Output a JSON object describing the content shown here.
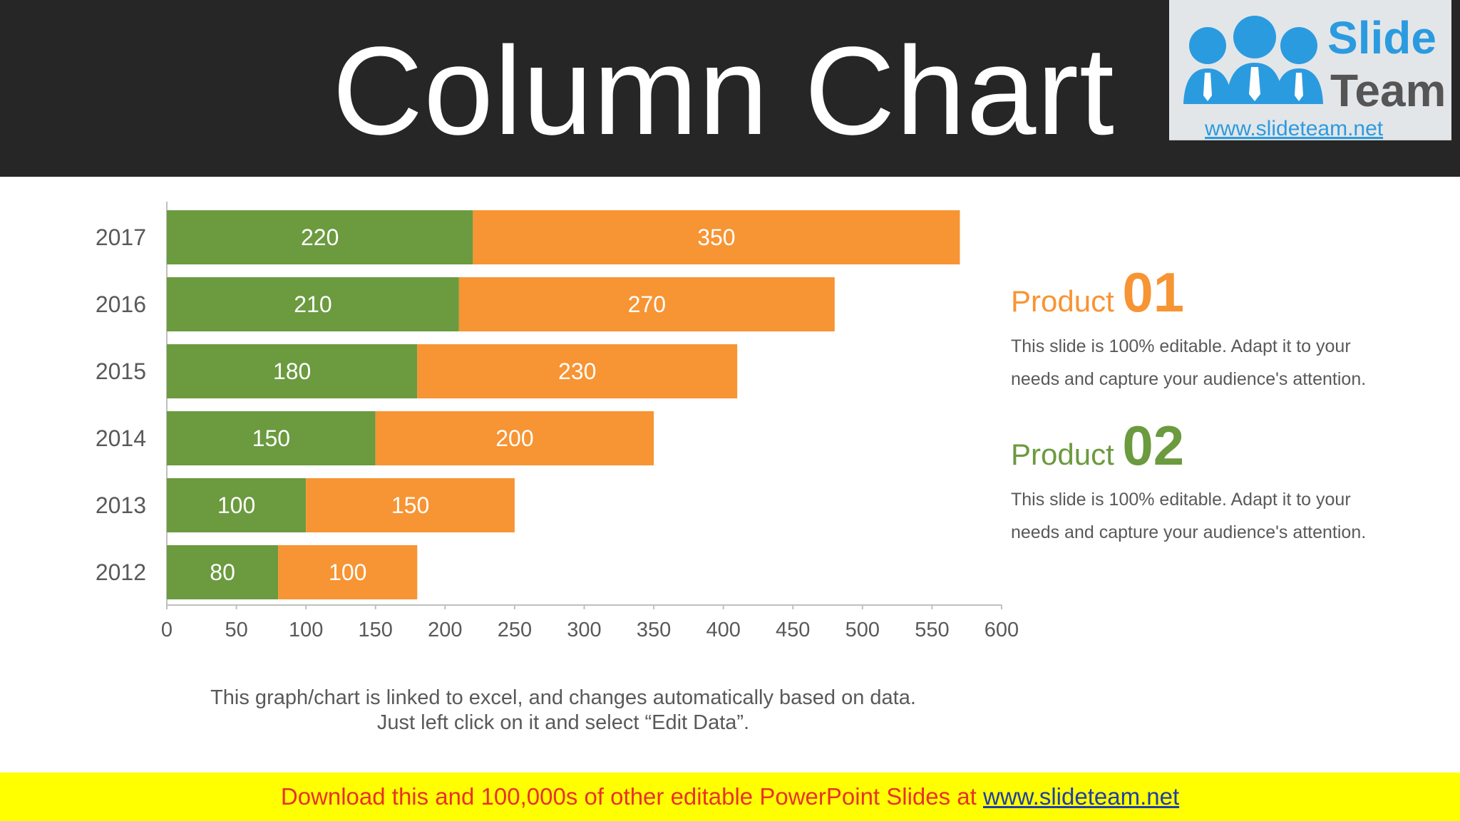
{
  "header": {
    "title": "Column Chart"
  },
  "logo": {
    "word1": "Slide",
    "word2": "Team",
    "url": "www.slideteam.net"
  },
  "colors": {
    "series1": "#6b9a3f",
    "series2": "#f79433",
    "header_bg": "#262626",
    "footer_bg": "#ffff00"
  },
  "chart_data": {
    "type": "bar",
    "orientation": "horizontal",
    "stacked": true,
    "categories": [
      "2017",
      "2016",
      "2015",
      "2014",
      "2013",
      "2012"
    ],
    "series": [
      {
        "values": [
          220,
          210,
          180,
          150,
          100,
          80
        ]
      },
      {
        "values": [
          350,
          270,
          230,
          200,
          150,
          100
        ]
      }
    ],
    "xlim": [
      0,
      600
    ],
    "xticks": [
      0,
      50,
      100,
      150,
      200,
      250,
      300,
      350,
      400,
      450,
      500,
      550,
      600
    ],
    "grid": false,
    "data_labels": true
  },
  "products": [
    {
      "label": "Product",
      "number": "01",
      "desc_line1": "This slide is 100% editable. Adapt it to your",
      "desc_line2": "needs and capture your audience's attention."
    },
    {
      "label": "Product",
      "number": "02",
      "desc_line1": "This slide is 100% editable. Adapt it to your",
      "desc_line2": "needs and capture your audience's attention."
    }
  ],
  "note": {
    "line1": "This graph/chart is linked to excel, and changes automatically based on data.",
    "line2": "Just left click on it and select “Edit Data”."
  },
  "footer": {
    "text": "Download this and 100,000s of other editable PowerPoint Slides at ",
    "link": "www.slideteam.net"
  }
}
